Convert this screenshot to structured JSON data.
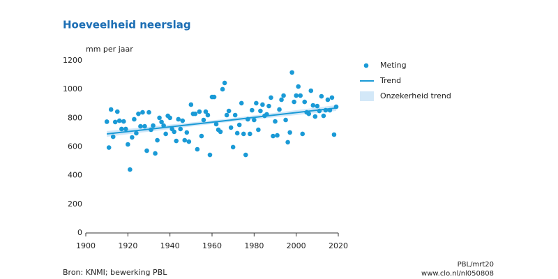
{
  "chart_data": {
    "type": "scatter",
    "title": "Hoeveelheid neerslag",
    "ylabel": "mm per jaar",
    "source": "Bron: KNMI; bewerking PBL",
    "notes": [
      "PBL/mrt20",
      "www.clo.nl/nl050808"
    ],
    "xlim": [
      1900,
      2020
    ],
    "xticks": [
      1900,
      1920,
      1940,
      1960,
      1980,
      2000,
      2020
    ],
    "ylim": [
      0,
      1200
    ],
    "yticks": [
      0,
      200,
      400,
      600,
      800,
      1000,
      1200
    ],
    "legend": "right",
    "series": [
      {
        "name": "Meting",
        "type": "scatter",
        "color": "#1a9ad6",
        "x": [
          1910,
          1911,
          1912,
          1913,
          1914,
          1915,
          1916,
          1917,
          1918,
          1919,
          1920,
          1921,
          1922,
          1923,
          1924,
          1925,
          1926,
          1927,
          1928,
          1929,
          1930,
          1931,
          1932,
          1933,
          1934,
          1935,
          1936,
          1937,
          1938,
          1939,
          1940,
          1941,
          1942,
          1943,
          1944,
          1945,
          1946,
          1947,
          1948,
          1949,
          1950,
          1951,
          1952,
          1953,
          1954,
          1955,
          1956,
          1957,
          1958,
          1959,
          1960,
          1961,
          1962,
          1963,
          1964,
          1965,
          1966,
          1967,
          1968,
          1969,
          1970,
          1971,
          1972,
          1973,
          1974,
          1975,
          1976,
          1977,
          1978,
          1979,
          1980,
          1981,
          1982,
          1983,
          1984,
          1985,
          1986,
          1987,
          1988,
          1989,
          1990,
          1991,
          1992,
          1993,
          1994,
          1995,
          1996,
          1997,
          1998,
          1999,
          2000,
          2001,
          2002,
          2003,
          2004,
          2005,
          2006,
          2007,
          2008,
          2009,
          2010,
          2011,
          2012,
          2013,
          2014,
          2015,
          2016,
          2017,
          2018,
          2019
        ],
        "values": [
          775,
          595,
          860,
          670,
          773,
          845,
          782,
          724,
          777,
          724,
          617,
          442,
          666,
          792,
          695,
          830,
          743,
          840,
          743,
          573,
          840,
          719,
          748,
          554,
          646,
          802,
          773,
          748,
          690,
          816,
          802,
          724,
          705,
          641,
          792,
          724,
          782,
          646,
          700,
          636,
          894,
          830,
          830,
          583,
          845,
          675,
          787,
          845,
          821,
          544,
          947,
          947,
          758,
          719,
          705,
          1001,
          1045,
          821,
          850,
          734,
          598,
          821,
          695,
          753,
          904,
          690,
          544,
          792,
          690,
          855,
          787,
          904,
          719,
          850,
          894,
          816,
          826,
          884,
          943,
          675,
          777,
          680,
          860,
          928,
          957,
          787,
          632,
          700,
          1118,
          913,
          957,
          1020,
          957,
          690,
          913,
          840,
          830,
          991,
          889,
          811,
          884,
          850,
          952,
          816,
          855,
          928,
          855,
          943,
          685,
          879
        ]
      },
      {
        "name": "Trend",
        "type": "line",
        "color": "#1a9ad6",
        "x": [
          1910,
          1965,
          2019
        ],
        "values": [
          690,
          780,
          870
        ]
      },
      {
        "name": "Onzekerheid trend",
        "type": "band",
        "color": "#d3e8f8",
        "x": [
          1910,
          1965,
          2019
        ],
        "lower": [
          670,
          768,
          850
        ],
        "upper": [
          710,
          792,
          890
        ]
      }
    ]
  }
}
